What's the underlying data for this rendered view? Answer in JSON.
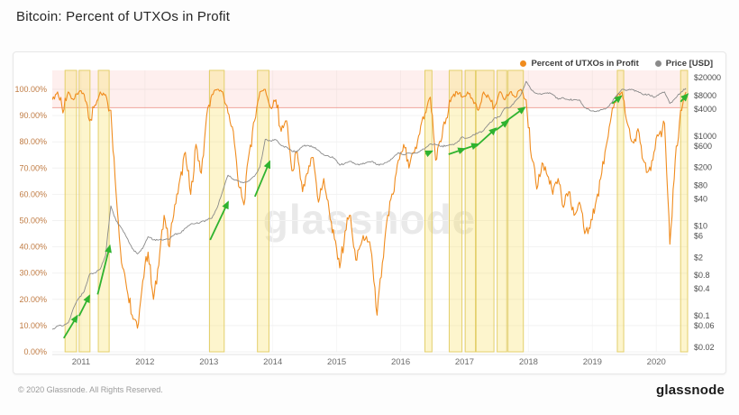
{
  "page": {
    "title": "Bitcoin: Percent of UTXOs in Profit",
    "watermark": "glassnode",
    "footer_copyright": "© 2020 Glassnode. All Rights Reserved.",
    "footer_logo": "glassnode"
  },
  "legend": {
    "items": [
      {
        "label": "Percent of UTXOs in Profit",
        "color": "#f08c1e"
      },
      {
        "label": "Price [USD]",
        "color": "#8a8a8a"
      }
    ]
  },
  "chart_data": {
    "type": "line",
    "title": "Bitcoin: Percent of UTXOs in Profit",
    "x_axis": {
      "range": [
        2010.55,
        2020.49
      ],
      "ticks": [
        2011,
        2012,
        2013,
        2014,
        2015,
        2016,
        2017,
        2018,
        2019,
        2020
      ],
      "tick_labels": [
        "2011",
        "2012",
        "2013",
        "2014",
        "2015",
        "2016",
        "2017",
        "2018",
        "2019",
        "2020"
      ]
    },
    "y_left": {
      "range": [
        0,
        100
      ],
      "tick_values": [
        0,
        10,
        20,
        30,
        40,
        50,
        60,
        70,
        80,
        90,
        100
      ],
      "tick_labels": [
        "0.00%",
        "10.00%",
        "20.00%",
        "30.00%",
        "40.00%",
        "50.00%",
        "60.00%",
        "70.00%",
        "80.00%",
        "90.00%",
        "100.00%"
      ],
      "label_color": "#c07c44"
    },
    "y_right": {
      "scale": "log",
      "range": [
        0.02,
        20000
      ],
      "ticks": [
        {
          "v": 20000,
          "l": "$20000"
        },
        {
          "v": 8000,
          "l": "$8000"
        },
        {
          "v": 4000,
          "l": "$4000"
        },
        {
          "v": 1000,
          "l": "$1000"
        },
        {
          "v": 600,
          "l": "$600"
        },
        {
          "v": 200,
          "l": "$200"
        },
        {
          "v": 80,
          "l": "$80"
        },
        {
          "v": 40,
          "l": "$40"
        },
        {
          "v": 10,
          "l": "$10"
        },
        {
          "v": 6,
          "l": "$6"
        },
        {
          "v": 2,
          "l": "$2"
        },
        {
          "v": 0.8,
          "l": "$0.8"
        },
        {
          "v": 0.4,
          "l": "$0.4"
        },
        {
          "v": 0.1,
          "l": "$0.1"
        },
        {
          "v": 0.06,
          "l": "$0.06"
        },
        {
          "v": 0.02,
          "l": "$0.02"
        }
      ],
      "label_color": "#4d4d4d"
    },
    "grid": {
      "h_color": "#f2f2f2",
      "v_color": "#f6f6f6"
    },
    "x_start": 2010.55,
    "x_step": 0.0833,
    "series": [
      {
        "name": "Percent of UTXOs in Profit",
        "axis": "left",
        "color": "#f08c1e",
        "width": 1.1,
        "jitter": 3.0,
        "values": [
          96,
          99,
          91,
          99,
          96,
          99,
          98,
          88,
          94,
          99,
          98,
          92,
          60,
          34,
          24,
          14,
          9,
          27,
          38,
          20,
          33,
          52,
          40,
          56,
          66,
          76,
          60,
          79,
          68,
          90,
          98,
          100,
          99,
          91,
          84,
          63,
          56,
          76,
          88,
          99,
          100,
          93,
          96,
          84,
          88,
          69,
          76,
          61,
          68,
          74,
          57,
          66,
          54,
          43,
          32,
          46,
          52,
          35,
          41,
          44,
          37,
          14,
          34,
          52,
          60,
          73,
          79,
          70,
          76,
          83,
          91,
          97,
          73,
          80,
          89,
          97,
          99,
          97,
          99,
          96,
          92,
          99,
          97,
          93,
          99,
          96,
          99,
          97,
          100,
          96,
          74,
          62,
          72,
          67,
          60,
          66,
          55,
          61,
          52,
          57,
          45,
          47,
          56,
          66,
          78,
          90,
          97,
          99,
          87,
          80,
          85,
          73,
          69,
          76,
          83,
          87,
          41,
          73,
          92,
          99
        ]
      },
      {
        "name": "Price [USD]",
        "axis": "right",
        "color": "#8a8a8a",
        "width": 0.9,
        "jitter": 0.022,
        "values": [
          0.05,
          0.06,
          0.06,
          0.07,
          0.15,
          0.25,
          0.35,
          0.85,
          0.9,
          1.1,
          2.2,
          28,
          13,
          9,
          5.5,
          3.2,
          2.4,
          3.2,
          5.8,
          4.9,
          4.9,
          5.0,
          5.1,
          6.6,
          6.9,
          9.0,
          11,
          11.5,
          12.5,
          13.5,
          15,
          26,
          60,
          135,
          110,
          100,
          92,
          102,
          128,
          205,
          850,
          780,
          830,
          620,
          570,
          460,
          450,
          600,
          620,
          570,
          480,
          380,
          350,
          320,
          225,
          250,
          275,
          235,
          240,
          258,
          275,
          230,
          236,
          268,
          330,
          428,
          385,
          420,
          418,
          450,
          530,
          670,
          650,
          585,
          610,
          645,
          715,
          960,
          900,
          1060,
          1180,
          1320,
          1850,
          2500,
          2700,
          4200,
          4400,
          6100,
          8200,
          16500,
          10500,
          8900,
          8600,
          9200,
          8400,
          6600,
          7100,
          6400,
          6500,
          6400,
          4300,
          3700,
          3500,
          3900,
          4100,
          5400,
          8000,
          11000,
          10500,
          10800,
          9800,
          8300,
          8600,
          7200,
          8600,
          9600,
          5300,
          6900,
          9200,
          11600
        ]
      }
    ],
    "top_zone": {
      "from_pct": 93,
      "fill": "rgba(244,110,100,0.11)",
      "border": "#efa49d"
    },
    "highlight_bands": {
      "fill": "rgba(250,225,100,0.32)",
      "border": "#e3cf6b",
      "x_ranges": [
        [
          2010.75,
          2010.93
        ],
        [
          2010.97,
          2011.14
        ],
        [
          2011.27,
          2011.44
        ],
        [
          2013.01,
          2013.24
        ],
        [
          2013.76,
          2013.94
        ],
        [
          2016.38,
          2016.49
        ],
        [
          2016.76,
          2016.96
        ],
        [
          2017.01,
          2017.17
        ],
        [
          2017.18,
          2017.46
        ],
        [
          2017.51,
          2017.66
        ],
        [
          2017.68,
          2017.92
        ],
        [
          2019.39,
          2019.49
        ],
        [
          2020.38,
          2020.49
        ]
      ]
    },
    "arrows": {
      "color": "#2fb32f",
      "segments": [
        {
          "x1": 2010.73,
          "y1": 0.032,
          "x2": 2010.94,
          "y2": 0.1
        },
        {
          "x1": 2010.97,
          "y1": 0.1,
          "x2": 2011.13,
          "y2": 0.28
        },
        {
          "x1": 2011.26,
          "y1": 0.3,
          "x2": 2011.45,
          "y2": 3.6
        },
        {
          "x1": 2013.02,
          "y1": 4.9,
          "x2": 2013.3,
          "y2": 34
        },
        {
          "x1": 2013.72,
          "y1": 45,
          "x2": 2013.95,
          "y2": 270
        },
        {
          "x1": 2016.39,
          "y1": 400,
          "x2": 2016.49,
          "y2": 460
        },
        {
          "x1": 2016.75,
          "y1": 394,
          "x2": 2017.0,
          "y2": 520
        },
        {
          "x1": 2017.0,
          "y1": 520,
          "x2": 2017.21,
          "y2": 655
        },
        {
          "x1": 2017.18,
          "y1": 590,
          "x2": 2017.49,
          "y2": 1480
        },
        {
          "x1": 2017.49,
          "y1": 1350,
          "x2": 2017.68,
          "y2": 2150
        },
        {
          "x1": 2017.63,
          "y1": 2050,
          "x2": 2017.94,
          "y2": 4300
        },
        {
          "x1": 2019.31,
          "y1": 5300,
          "x2": 2019.45,
          "y2": 7700
        },
        {
          "x1": 2020.38,
          "y1": 5800,
          "x2": 2020.49,
          "y2": 8500
        }
      ]
    }
  }
}
